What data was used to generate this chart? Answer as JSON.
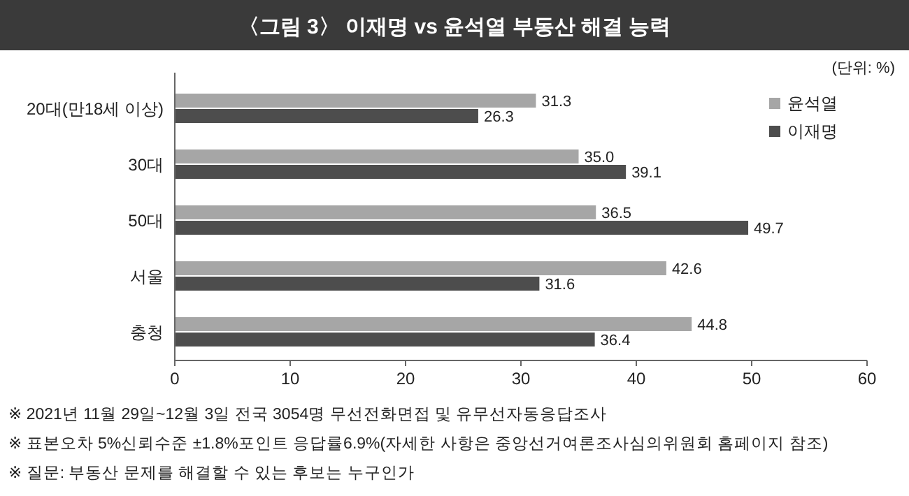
{
  "chart_data": {
    "type": "bar",
    "orientation": "horizontal",
    "title": "〈그림 3〉 이재명 vs 윤석열 부동산 해결 능력",
    "categories": [
      "20대(만18세 이상)",
      "30대",
      "50대",
      "서울",
      "충청"
    ],
    "series": [
      {
        "name": "윤석열",
        "color": "#a6a6a6",
        "values": [
          31.3,
          35.0,
          36.5,
          42.6,
          44.8
        ],
        "value_labels": [
          "31.3",
          "35.0",
          "36.5",
          "42.6",
          "44.8"
        ]
      },
      {
        "name": "이재명",
        "color": "#4d4d4d",
        "values": [
          26.3,
          39.1,
          49.7,
          31.6,
          36.4
        ],
        "value_labels": [
          "26.3",
          "39.1",
          "49.7",
          "31.6",
          "36.4"
        ]
      }
    ],
    "xlim": [
      0,
      60
    ],
    "xticks": [
      0,
      10,
      20,
      30,
      40,
      50,
      60
    ],
    "grid": false,
    "legend": "top right",
    "annotations": [
      "(단위: %)",
      "※ 2021년 11월 29일~12월 3일 전국 3054명 무선전화면접 및 유무선자동응답조사",
      "※ 표본오차 5%신뢰수준 ±1.8%포인트 응답률6.9%(자세한 사항은 중앙선거여론조사심의위원회 홈페이지 참조)",
      "※ 질문: 부동산 문제를 해결할 수 있는 후보는 누구인가"
    ]
  }
}
